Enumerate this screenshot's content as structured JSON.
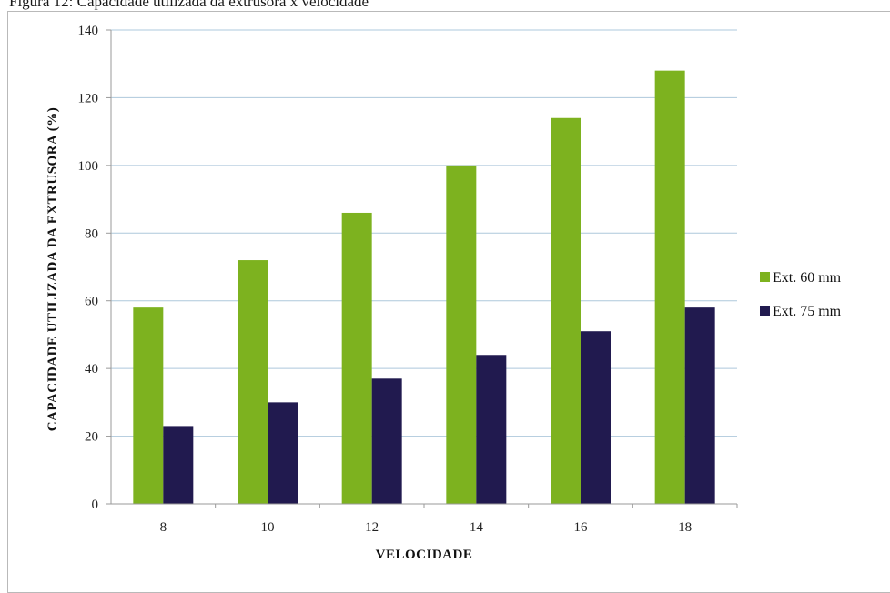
{
  "caption": "Figura 12: Capacidade utilizada da extrusora x velocidade",
  "chart_data": {
    "type": "bar",
    "categories": [
      "8",
      "10",
      "12",
      "14",
      "16",
      "18"
    ],
    "series": [
      {
        "name": "Ext. 60 mm",
        "values": [
          58,
          72,
          86,
          100,
          114,
          128
        ],
        "color": "#7db21f"
      },
      {
        "name": "Ext. 75 mm",
        "values": [
          23,
          30,
          37,
          44,
          51,
          58
        ],
        "color": "#211a4f"
      }
    ],
    "title": "",
    "xlabel": "VELOCIDADE",
    "ylabel": "CAPACIDADE UTILIZADA DA EXTRUSORA (%)",
    "ylim": [
      0,
      140
    ],
    "yticks": [
      "0",
      "20",
      "40",
      "60",
      "80",
      "100",
      "120",
      "140"
    ],
    "grid": true,
    "legend_position": "right"
  }
}
